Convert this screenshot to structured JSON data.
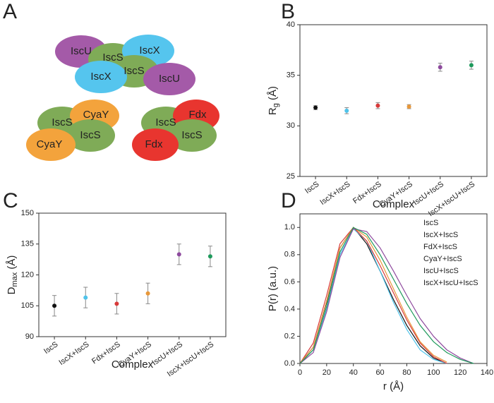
{
  "panel_a": {
    "panel": "A",
    "nodes": [
      "IscU",
      "IscS",
      "IscX",
      "IscX",
      "IscS",
      "IscU",
      "IscS",
      "CyaY",
      "IscS",
      "CyaY",
      "IscS",
      "Fdx",
      "IscS",
      "Fdx"
    ]
  },
  "chart_data": [
    {
      "type": "errorbar",
      "panel": "B",
      "y_label": {
        "main": "R",
        "sub": "g",
        "unit": " (Å)"
      },
      "x_label": "Complex",
      "categories": [
        "IscS",
        "IscX+IscS",
        "Fdx+IscS",
        "CyaY+IscS",
        "IscU+IscS",
        "IscX+IscU+IscS"
      ],
      "values": [
        31.8,
        31.5,
        32.0,
        31.9,
        35.8,
        36.0
      ],
      "errors": [
        0.2,
        0.3,
        0.3,
        0.2,
        0.4,
        0.4
      ],
      "colors": [
        "#111111",
        "#4fc3ea",
        "#d83a3a",
        "#e8983a",
        "#8e4a9e",
        "#1f9a5c"
      ],
      "ylim": [
        25,
        40
      ],
      "yticks": [
        25,
        30,
        35,
        40
      ]
    },
    {
      "type": "errorbar",
      "panel": "C",
      "y_label": {
        "main": "D",
        "sub": "max",
        "unit": " (Å)"
      },
      "x_label": "Complex",
      "categories": [
        "IscS",
        "IscX+IscS",
        "Fdx+IscS",
        "CyaY+IscS",
        "IscU+IscS",
        "IscX+IscU+IscS"
      ],
      "values": [
        105,
        109,
        106,
        111,
        130,
        129
      ],
      "errors": [
        5,
        5,
        5,
        5,
        5,
        5
      ],
      "colors": [
        "#111111",
        "#4fc3ea",
        "#d83a3a",
        "#e8983a",
        "#8e4a9e",
        "#1f9a5c"
      ],
      "ylim": [
        90,
        150
      ],
      "yticks": [
        90,
        105,
        120,
        135,
        150
      ]
    },
    {
      "type": "line",
      "panel": "D",
      "y_label": "P(r) (a.u.)",
      "x_label": "r (Å)",
      "x": [
        0,
        10,
        20,
        30,
        40,
        50,
        60,
        70,
        80,
        90,
        100,
        110,
        120,
        130
      ],
      "series": [
        {
          "name": "IscS",
          "color": "#111111",
          "values": [
            0,
            0.12,
            0.45,
            0.85,
            1.0,
            0.88,
            0.68,
            0.47,
            0.28,
            0.13,
            0.04,
            0.0,
            null,
            null
          ]
        },
        {
          "name": "IscX+IscS",
          "color": "#4fc3ea",
          "values": [
            0,
            0.1,
            0.4,
            0.8,
            0.99,
            0.9,
            0.68,
            0.45,
            0.25,
            0.1,
            0.03,
            0.0,
            null,
            null
          ]
        },
        {
          "name": "FdX+IscS",
          "color": "#d83a3a",
          "values": [
            0,
            0.15,
            0.5,
            0.88,
            1.0,
            0.9,
            0.72,
            0.52,
            0.32,
            0.15,
            0.05,
            0.0,
            null,
            null
          ]
        },
        {
          "name": "CyaY+IscS",
          "color": "#e8983a",
          "values": [
            0,
            0.12,
            0.46,
            0.85,
            1.0,
            0.93,
            0.76,
            0.55,
            0.34,
            0.16,
            0.06,
            0.01,
            null,
            null
          ]
        },
        {
          "name": "IscU+IscS",
          "color": "#8e4a9e",
          "values": [
            0,
            0.08,
            0.38,
            0.78,
            0.99,
            0.97,
            0.85,
            0.68,
            0.5,
            0.33,
            0.2,
            0.1,
            0.04,
            0.0
          ]
        },
        {
          "name": "IscX+IscU+IscS",
          "color": "#1f9a5c",
          "values": [
            0,
            0.1,
            0.42,
            0.82,
            1.0,
            0.95,
            0.8,
            0.62,
            0.44,
            0.28,
            0.16,
            0.08,
            0.03,
            0.0
          ]
        }
      ],
      "xlim": [
        0,
        140
      ],
      "xticks": [
        0,
        20,
        40,
        60,
        80,
        100,
        120,
        140
      ],
      "ylim": [
        0,
        1.1
      ],
      "yticks": [
        {
          "value": 0,
          "label": "0.0"
        },
        {
          "value": 0.2,
          "label": "0.2"
        },
        {
          "value": 0.4,
          "label": "0.4"
        },
        {
          "value": 0.6,
          "label": "0.6"
        },
        {
          "value": 0.8,
          "label": "0.8"
        },
        {
          "value": 1.0,
          "label": "1.0"
        }
      ]
    }
  ]
}
